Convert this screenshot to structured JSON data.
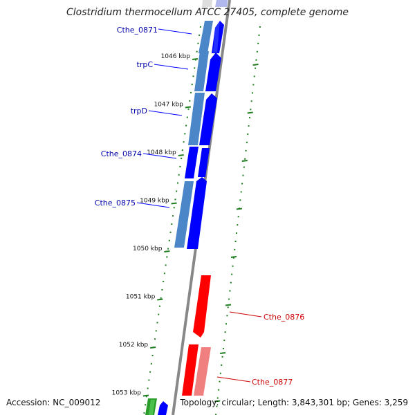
{
  "title": "Clostridium thermocellum ATCC 27405, complete genome",
  "footer": {
    "accession": "Accession: NC_009012",
    "summary": "Topology: circular; Length: 3,843,301 bp; Genes: 3,259"
  },
  "colors": {
    "forward_strand": "#0000ff",
    "forward_strand_light": "#4a86c8",
    "reverse_strand": "#ff0000",
    "reverse_strand_light": "#f08080",
    "green_feature": "#2a9d2a",
    "backbone": "#888888",
    "tick": "#1e7d1e",
    "forward_label": "#0000aa",
    "reverse_label": "#cc0000"
  },
  "ruler_ticks": [
    {
      "label": "1046 kbp"
    },
    {
      "label": "1047 kbp"
    },
    {
      "label": "1048 kbp"
    },
    {
      "label": "1049 kbp"
    },
    {
      "label": "1050 kbp"
    },
    {
      "label": "1051 kbp"
    },
    {
      "label": "1052 kbp"
    },
    {
      "label": "1053 kbp"
    }
  ],
  "genes": [
    {
      "name": "Cthe_0871",
      "strand": "forward"
    },
    {
      "name": "trpC",
      "strand": "forward"
    },
    {
      "name": "trpD",
      "strand": "forward"
    },
    {
      "name": "Cthe_0874",
      "strand": "forward"
    },
    {
      "name": "Cthe_0875",
      "strand": "forward"
    },
    {
      "name": "Cthe_0876",
      "strand": "reverse"
    },
    {
      "name": "Cthe_0877",
      "strand": "reverse"
    }
  ]
}
